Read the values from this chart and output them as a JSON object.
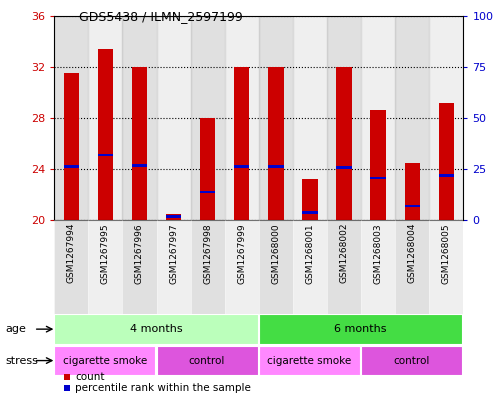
{
  "title": "GDS5438 / ILMN_2597199",
  "samples": [
    "GSM1267994",
    "GSM1267995",
    "GSM1267996",
    "GSM1267997",
    "GSM1267998",
    "GSM1267999",
    "GSM1268000",
    "GSM1268001",
    "GSM1268002",
    "GSM1268003",
    "GSM1268004",
    "GSM1268005"
  ],
  "count_values": [
    31.5,
    33.4,
    32.0,
    20.5,
    28.0,
    32.0,
    32.0,
    23.2,
    32.0,
    28.6,
    24.5,
    29.2
  ],
  "percentile_values": [
    24.2,
    25.1,
    24.3,
    20.3,
    22.2,
    24.2,
    24.2,
    20.6,
    24.1,
    23.3,
    21.1,
    23.5
  ],
  "ylim_left": [
    20,
    36
  ],
  "ylim_right": [
    0,
    100
  ],
  "yticks_left": [
    20,
    24,
    28,
    32,
    36
  ],
  "yticks_right": [
    0,
    25,
    50,
    75,
    100
  ],
  "age_groups": [
    {
      "label": "4 months",
      "start": 0,
      "end": 6,
      "color": "#bbffbb"
    },
    {
      "label": "6 months",
      "start": 6,
      "end": 12,
      "color": "#44dd44"
    }
  ],
  "stress_groups": [
    {
      "label": "cigarette smoke",
      "start": 0,
      "end": 3,
      "color": "#ff88ff"
    },
    {
      "label": "control",
      "start": 3,
      "end": 6,
      "color": "#dd55dd"
    },
    {
      "label": "cigarette smoke",
      "start": 6,
      "end": 9,
      "color": "#ff88ff"
    },
    {
      "label": "control",
      "start": 9,
      "end": 12,
      "color": "#dd55dd"
    }
  ],
  "bar_color": "#cc0000",
  "blue_color": "#0000cc",
  "bar_width": 0.45,
  "blue_bar_width": 0.45,
  "blue_bar_height": 0.22,
  "axis_label_color_left": "#cc0000",
  "axis_label_color_right": "#0000cc",
  "background_color": "#ffffff",
  "plot_bg_color": "#ffffff",
  "col_bg_even": "#bbbbbb",
  "col_bg_odd": "#dddddd",
  "col_bg_alpha": 0.45,
  "legend_items": [
    {
      "label": "count",
      "color": "#cc0000"
    },
    {
      "label": "percentile rank within the sample",
      "color": "#0000cc"
    }
  ],
  "row_label_age": "age",
  "row_label_stress": "stress"
}
